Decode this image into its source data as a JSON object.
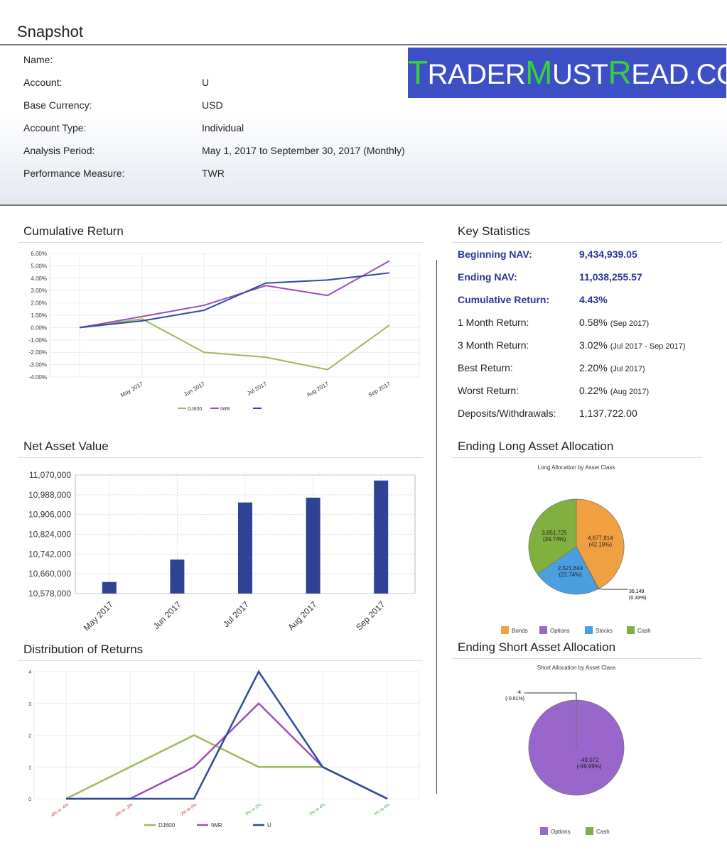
{
  "snapshot": {
    "title": "Snapshot",
    "rows": [
      {
        "label": "Name:",
        "value": ""
      },
      {
        "label": "Account:",
        "value": "U"
      },
      {
        "label": "Base Currency:",
        "value": "USD"
      },
      {
        "label": "Account Type:",
        "value": "Individual"
      },
      {
        "label": "Analysis Period:",
        "value": "May 1, 2017 to September 30, 2017 (Monthly)"
      },
      {
        "label": "Performance Measure:",
        "value": "TWR"
      }
    ]
  },
  "banner": {
    "parts": [
      "T",
      "RADER",
      "M",
      "UST",
      "R",
      "EAD.COM"
    ]
  },
  "sections": {
    "cumulative_return": "Cumulative Return",
    "net_asset_value": "Net Asset Value",
    "distribution": "Distribution of Returns",
    "key_statistics": "Key Statistics",
    "long_alloc": "Ending Long Asset Allocation",
    "short_alloc": "Ending Short Asset Allocation"
  },
  "key_statistics": [
    {
      "label": "Beginning NAV:",
      "value": "9,434,939.05",
      "sub": "",
      "highlight": true
    },
    {
      "label": "Ending NAV:",
      "value": "11,038,255.57",
      "sub": "",
      "highlight": true
    },
    {
      "label": "Cumulative Return:",
      "value": "4.43%",
      "sub": "",
      "highlight": true
    },
    {
      "label": "1 Month Return:",
      "value": "0.58%",
      "sub": "(Sep 2017)",
      "highlight": false
    },
    {
      "label": "3 Month Return:",
      "value": "3.02%",
      "sub": "(Jul 2017 - Sep 2017)",
      "highlight": false
    },
    {
      "label": "Best Return:",
      "value": "2.20%",
      "sub": "(Jul 2017)",
      "highlight": false
    },
    {
      "label": "Worst Return:",
      "value": "0.22%",
      "sub": "(Aug 2017)",
      "highlight": false
    },
    {
      "label": "Deposits/Withdrawals:",
      "value": "1,137,722.00",
      "sub": "",
      "highlight": false
    }
  ],
  "colors": {
    "dj600": "#9bbb59",
    "iwr": "#9b4fbf",
    "u": "#2e4a9e",
    "nav_bar": "#2e4393",
    "bonds": "#f0a040",
    "options": "#9966cc",
    "stocks": "#4a9fe0",
    "cash": "#80b040"
  },
  "chart_data": [
    {
      "id": "cumulative_return",
      "type": "line",
      "x": [
        "",
        "May 2017",
        "Jun 2017",
        "Jul 2017",
        "Aug 2017",
        "Sep 2017"
      ],
      "series": [
        {
          "name": "DJ600",
          "values": [
            0.0,
            0.7,
            -2.0,
            -2.4,
            -3.4,
            0.2
          ]
        },
        {
          "name": "IWR",
          "values": [
            0.0,
            0.9,
            1.8,
            3.4,
            2.6,
            5.4
          ]
        },
        {
          "name": "",
          "values": [
            0.0,
            0.55,
            1.4,
            3.6,
            3.85,
            4.43
          ]
        }
      ],
      "yticks": [
        "6.00%",
        "5.00%",
        "4.00%",
        "3.00%",
        "2.00%",
        "1.00%",
        "0.00%",
        "-1.00%",
        "-2.00%",
        "-3.00%",
        "-4.00%"
      ],
      "ylim": [
        -4,
        6
      ],
      "grid": true,
      "legend": "bottom"
    },
    {
      "id": "net_asset_value",
      "type": "bar",
      "categories": [
        "May 2017",
        "Jun 2017",
        "Jul 2017",
        "Aug 2017",
        "Sep 2017"
      ],
      "values": [
        10626000,
        10719000,
        10956000,
        10976000,
        11047000
      ],
      "yticks": [
        "11,070,000",
        "10,988,000",
        "10,906,000",
        "10,824,000",
        "10,742,000",
        "10,660,000",
        "10,578,000"
      ],
      "ylim": [
        10578000,
        11070000
      ],
      "grid": true
    },
    {
      "id": "distribution",
      "type": "line",
      "categories": [
        "-6% to -4%",
        "-4% to -2%",
        "-2% to 0%",
        "0% to 2%",
        "2% to 4%",
        "4% to 6%"
      ],
      "series": [
        {
          "name": "DJ600",
          "values": [
            0,
            1,
            2,
            1,
            1,
            0
          ]
        },
        {
          "name": "IWR",
          "values": [
            0,
            0,
            1,
            3,
            1,
            0
          ]
        },
        {
          "name": "U",
          "values": [
            0,
            0,
            0,
            4,
            1,
            0
          ]
        }
      ],
      "yticks": [
        "4",
        "3",
        "2",
        "1",
        "0"
      ],
      "ylim": [
        0,
        4
      ],
      "grid": true,
      "legend": "bottom"
    },
    {
      "id": "long_alloc",
      "type": "pie",
      "title": "Long Allocation by Asset Class",
      "slices": [
        {
          "name": "Bonds",
          "value": 4677814,
          "label": "4,677,814",
          "pct": "(42.19%)"
        },
        {
          "name": "Options",
          "value": 36149,
          "label": "36,149",
          "pct": "(0.33%)"
        },
        {
          "name": "Stocks",
          "value": 2521644,
          "label": "2,521,644",
          "pct": "(22.74%)"
        },
        {
          "name": "Cash",
          "value": 3851725,
          "label": "3,851,725",
          "pct": "(34.74%)"
        }
      ],
      "legend": [
        "Bonds",
        "Options",
        "Stocks",
        "Cash"
      ]
    },
    {
      "id": "short_alloc",
      "type": "pie",
      "title": "Short Allocation by Asset Class",
      "slices": [
        {
          "name": "Options",
          "value": 49072,
          "label": "-49,072",
          "pct": "(-99.99%)"
        },
        {
          "name": "Cash",
          "value": 4,
          "label": "-4",
          "pct": "(-0.01%)"
        }
      ],
      "legend": [
        "Options",
        "Cash"
      ]
    }
  ]
}
